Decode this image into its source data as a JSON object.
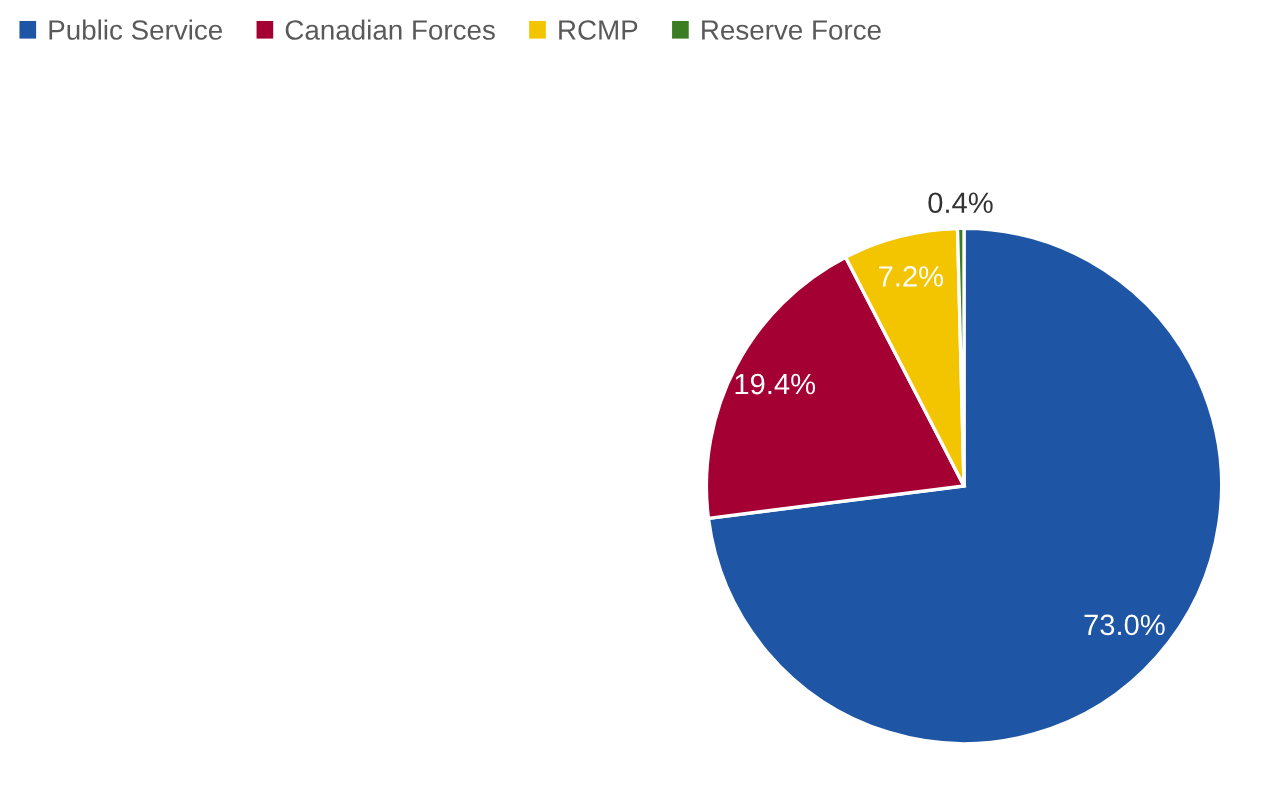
{
  "chart_data": {
    "type": "pie",
    "categories": [
      "Public Service",
      "Canadian Forces",
      "RCMP",
      "Reserve Force"
    ],
    "values": [
      73.0,
      19.4,
      7.2,
      0.4
    ],
    "colors": [
      "#1f55a5",
      "#a50034",
      "#f2c500",
      "#3a7d22"
    ],
    "value_labels": [
      "73.0%",
      "19.4%",
      "7.2%",
      "0.4%"
    ],
    "legend": "top left"
  }
}
